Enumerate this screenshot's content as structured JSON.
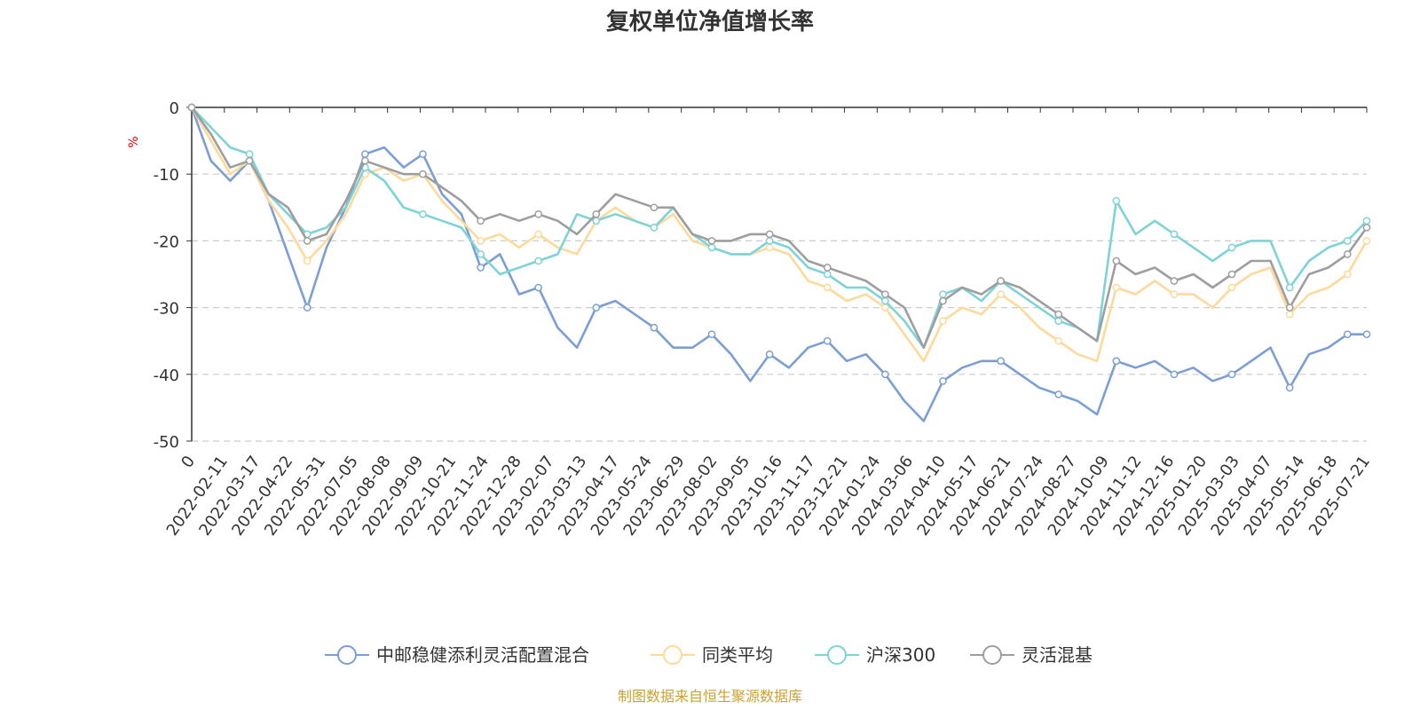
{
  "chart_data": {
    "type": "line",
    "title": "复权单位净值增长率",
    "ylabel": "%",
    "ylim": [
      -50,
      0
    ],
    "y_ticks": [
      0,
      -10,
      -20,
      -30,
      -40,
      -50
    ],
    "x_tick_labels": [
      "0",
      "2022-02-11",
      "2022-03-17",
      "2022-04-22",
      "2022-05-31",
      "2022-07-05",
      "2022-08-08",
      "2022-09-09",
      "2022-10-21",
      "2022-11-24",
      "2022-12-28",
      "2023-02-07",
      "2023-03-13",
      "2023-04-17",
      "2023-05-24",
      "2023-06-29",
      "2023-08-02",
      "2023-09-05",
      "2023-10-16",
      "2023-11-17",
      "2023-12-21",
      "2024-01-24",
      "2024-03-06",
      "2024-04-10",
      "2024-05-17",
      "2024-06-21",
      "2024-07-24",
      "2024-08-27",
      "2024-10-09",
      "2024-11-12",
      "2024-12-16",
      "2025-01-20",
      "2025-03-03",
      "2025-04-07",
      "2025-05-14",
      "2025-06-18",
      "2025-07-21"
    ],
    "grid": "horizontal-dashed",
    "legend_position": "bottom",
    "source": "制图数据来自恒生聚源数据库",
    "series": [
      {
        "name": "中邮稳健添利灵活配置混合",
        "color": "#7B9FD4",
        "values": [
          0,
          -8,
          -11,
          -8,
          -14,
          -22,
          -30,
          -21,
          -15,
          -7,
          -6,
          -9,
          -7,
          -13,
          -16,
          -24,
          -22,
          -28,
          -27,
          -33,
          -36,
          -30,
          -29,
          -31,
          -33,
          -36,
          -36,
          -34,
          -37,
          -41,
          -37,
          -39,
          -36,
          -35,
          -38,
          -37,
          -40,
          -44,
          -47,
          -41,
          -39,
          -38,
          -38,
          -40,
          -42,
          -43,
          -44,
          -46,
          -38,
          -39,
          -38,
          -40,
          -39,
          -41,
          -40,
          -38,
          -36,
          -42,
          -37,
          -36,
          -34,
          -34
        ]
      },
      {
        "name": "同类平均",
        "color": "#FDD99A",
        "values": [
          0,
          -5,
          -10,
          -8,
          -14,
          -18,
          -23,
          -20,
          -16,
          -10,
          -9,
          -11,
          -10,
          -14,
          -17,
          -20,
          -19,
          -21,
          -19,
          -21,
          -22,
          -17,
          -15,
          -17,
          -18,
          -16,
          -20,
          -21,
          -22,
          -22,
          -21,
          -22,
          -26,
          -27,
          -29,
          -28,
          -30,
          -34,
          -38,
          -32,
          -30,
          -31,
          -28,
          -30,
          -33,
          -35,
          -37,
          -38,
          -27,
          -28,
          -26,
          -28,
          -28,
          -30,
          -27,
          -25,
          -24,
          -31,
          -28,
          -27,
          -25,
          -20
        ]
      },
      {
        "name": "沪深300",
        "color": "#7DD3D8",
        "values": [
          0,
          -3,
          -6,
          -7,
          -13,
          -16,
          -19,
          -18,
          -15,
          -9,
          -11,
          -15,
          -16,
          -17,
          -18,
          -22,
          -25,
          -24,
          -23,
          -22,
          -16,
          -17,
          -16,
          -17,
          -18,
          -15,
          -19,
          -21,
          -22,
          -22,
          -20,
          -21,
          -24,
          -25,
          -27,
          -27,
          -29,
          -32,
          -36,
          -28,
          -27,
          -29,
          -26,
          -28,
          -30,
          -32,
          -33,
          -35,
          -14,
          -19,
          -17,
          -19,
          -21,
          -23,
          -21,
          -20,
          -20,
          -27,
          -23,
          -21,
          -20,
          -17
        ]
      },
      {
        "name": "灵活混基",
        "color": "#9E9E9E",
        "values": [
          0,
          -4,
          -9,
          -8,
          -13,
          -15,
          -20,
          -19,
          -14,
          -8,
          -9,
          -10,
          -10,
          -12,
          -14,
          -17,
          -16,
          -17,
          -16,
          -17,
          -19,
          -16,
          -13,
          -14,
          -15,
          -15,
          -19,
          -20,
          -20,
          -19,
          -19,
          -20,
          -23,
          -24,
          -25,
          -26,
          -28,
          -30,
          -36,
          -29,
          -27,
          -28,
          -26,
          -27,
          -29,
          -31,
          -33,
          -35,
          -23,
          -25,
          -24,
          -26,
          -25,
          -27,
          -25,
          -23,
          -23,
          -30,
          -25,
          -24,
          -22,
          -18
        ]
      }
    ]
  }
}
